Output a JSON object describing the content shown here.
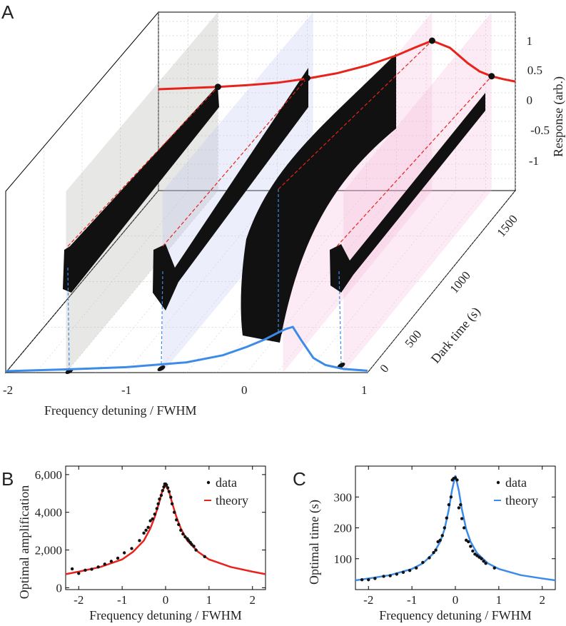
{
  "panel_labels": {
    "a": "A",
    "b": "B",
    "c": "C"
  },
  "chart_data": [
    {
      "panel": "A",
      "type": "line",
      "title": "",
      "xlabel": "Frequency detuning / FWHM",
      "ylabel": "Dark time (s)",
      "zlabel": "Response (arb.)",
      "xlim": [
        -2,
        1
      ],
      "x_ticks": [
        "-2",
        "-1",
        "0",
        "1"
      ],
      "y_ticks": [
        "0",
        "500",
        "1000",
        "1500"
      ],
      "z_ticks": [
        "1",
        "0.5",
        "0",
        "-0.5",
        "-1"
      ],
      "trace_detunings": [
        -1.5,
        -0.7,
        0.3,
        0.8
      ],
      "trace_colors": [
        "#a9a9a0",
        "#b9c3ef",
        "#f3b4d7",
        "#f3b4d7"
      ],
      "red_curve": {
        "color": "#e8231b",
        "x": [
          -2,
          -1.75,
          -1.5,
          -1.25,
          -1,
          -0.75,
          -0.5,
          -0.25,
          0,
          0.15,
          0.3,
          0.45,
          0.6,
          0.7,
          0.8,
          0.9,
          1
        ],
        "response": [
          0.18,
          0.2,
          0.22,
          0.25,
          0.29,
          0.36,
          0.45,
          0.58,
          0.75,
          0.88,
          1.0,
          0.88,
          0.62,
          0.48,
          0.4,
          0.35,
          0.31
        ]
      },
      "red_points": {
        "x": [
          -1.5,
          -0.75,
          0.3,
          0.8
        ],
        "response": [
          0.22,
          0.37,
          1.0,
          0.4
        ]
      },
      "blue_curve": {
        "color": "#3d8be8",
        "x": [
          -2,
          -1.5,
          -1,
          -0.5,
          -0.2,
          0,
          0.15,
          0.25,
          0.32,
          0.38,
          0.45,
          0.55,
          0.65,
          0.8,
          1
        ],
        "amplitude": [
          0.0,
          0.04,
          0.09,
          0.2,
          0.36,
          0.55,
          0.72,
          0.86,
          0.95,
          1.0,
          0.7,
          0.3,
          0.14,
          0.05,
          0.01
        ]
      }
    },
    {
      "panel": "B",
      "type": "scatter",
      "xlabel": "Frequency detuning / FWHM",
      "ylabel": "Optimal amplification",
      "xlim": [
        -2.3,
        2.3
      ],
      "ylim": [
        -100,
        6450
      ],
      "x_ticks": [
        -2,
        -1,
        0,
        1,
        2
      ],
      "x_tick_labels": [
        "-2",
        "-1",
        "0",
        "1",
        "2"
      ],
      "y_ticks": [
        0,
        2000,
        4000,
        6000
      ],
      "y_tick_labels": [
        "0",
        "2,000",
        "4,000",
        "6,000"
      ],
      "legend": {
        "position": "top-right",
        "entries": [
          "data",
          "theory"
        ]
      },
      "series": [
        {
          "name": "data",
          "color": "#111111",
          "x": [
            -2.15,
            -2.0,
            -1.85,
            -1.7,
            -1.55,
            -1.4,
            -1.25,
            -1.1,
            -0.95,
            -0.78,
            -0.6,
            -0.5,
            -0.45,
            -0.4,
            -0.35,
            -0.3,
            -0.25,
            -0.2,
            -0.17,
            -0.14,
            -0.1,
            -0.07,
            -0.04,
            -0.02,
            0.0,
            0.02,
            0.05,
            0.08,
            0.12,
            0.15,
            0.2,
            0.25,
            0.3,
            0.35,
            0.4,
            0.45,
            0.5,
            0.53,
            0.57,
            0.6,
            0.65,
            0.7,
            0.9
          ],
          "y": [
            1000,
            760,
            930,
            980,
            1100,
            1250,
            1400,
            1570,
            1850,
            2080,
            2500,
            2900,
            3050,
            3200,
            3550,
            3650,
            3900,
            4200,
            4450,
            4700,
            4900,
            5150,
            5350,
            5500,
            5500,
            5450,
            5300,
            5100,
            4800,
            4450,
            4000,
            3600,
            3350,
            3050,
            2850,
            2700,
            2600,
            2500,
            2400,
            2300,
            2200,
            2000,
            1650
          ]
        },
        {
          "name": "theory",
          "color": "#e8231b",
          "x": [
            -2.3,
            -2,
            -1.5,
            -1,
            -0.75,
            -0.5,
            -0.35,
            -0.25,
            -0.15,
            -0.08,
            0,
            0.08,
            0.15,
            0.25,
            0.35,
            0.5,
            0.75,
            1,
            1.5,
            2,
            2.3
          ],
          "y": [
            720,
            850,
            1100,
            1500,
            1900,
            2500,
            3150,
            3750,
            4500,
            5100,
            5450,
            5100,
            4500,
            3750,
            3150,
            2500,
            1900,
            1500,
            1100,
            850,
            720
          ]
        }
      ]
    },
    {
      "panel": "C",
      "type": "scatter",
      "xlabel": "Frequency detuning / FWHM",
      "ylabel": "Optimal time (s)",
      "xlim": [
        -2.3,
        2.3
      ],
      "ylim": [
        0,
        400
      ],
      "x_ticks": [
        -2,
        -1,
        0,
        1,
        2
      ],
      "x_tick_labels": [
        "-2",
        "-1",
        "0",
        "1",
        "2"
      ],
      "y_ticks": [
        100,
        200,
        300
      ],
      "y_tick_labels": [
        "100",
        "200",
        "300"
      ],
      "legend": {
        "position": "top-right",
        "entries": [
          "data",
          "theory"
        ]
      },
      "series": [
        {
          "name": "data",
          "color": "#111111",
          "x": [
            -2.15,
            -2.0,
            -1.85,
            -1.65,
            -1.5,
            -1.35,
            -1.2,
            -1.05,
            -0.9,
            -0.75,
            -0.6,
            -0.5,
            -0.45,
            -0.4,
            -0.35,
            -0.3,
            -0.25,
            -0.2,
            -0.15,
            -0.1,
            -0.07,
            -0.04,
            0.0,
            0.04,
            0.08,
            0.12,
            0.15,
            0.2,
            0.25,
            0.3,
            0.35,
            0.4,
            0.45,
            0.5,
            0.55,
            0.6,
            0.65,
            0.7,
            0.9
          ],
          "y": [
            32,
            32,
            36,
            43,
            45,
            50,
            56,
            62,
            70,
            88,
            103,
            120,
            128,
            155,
            160,
            175,
            200,
            232,
            275,
            300,
            355,
            360,
            362,
            355,
            265,
            275,
            230,
            200,
            160,
            155,
            140,
            125,
            115,
            110,
            105,
            100,
            92,
            85,
            70
          ]
        },
        {
          "name": "theory",
          "color": "#3d8be8",
          "x": [
            -2.3,
            -2,
            -1.5,
            -1,
            -0.75,
            -0.5,
            -0.35,
            -0.25,
            -0.15,
            -0.08,
            0,
            0.08,
            0.15,
            0.25,
            0.35,
            0.5,
            0.75,
            1,
            1.5,
            2,
            2.3
          ],
          "y": [
            30,
            36,
            47,
            67,
            85,
            118,
            155,
            195,
            260,
            320,
            370,
            320,
            260,
            195,
            155,
            118,
            85,
            67,
            47,
            36,
            30
          ]
        }
      ]
    }
  ]
}
